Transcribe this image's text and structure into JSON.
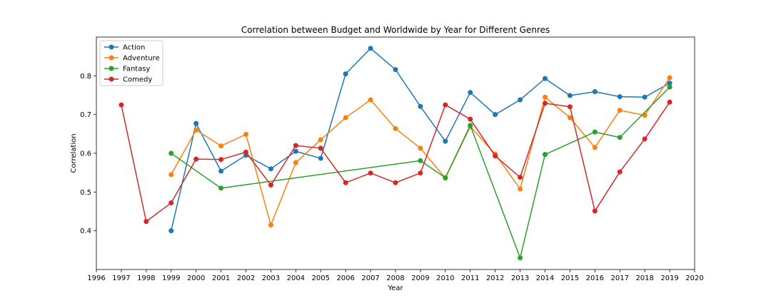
{
  "chart_data": {
    "type": "line",
    "title": "Correlation between Budget and Worldwide by Year for Different Genres",
    "xlabel": "Year",
    "ylabel": "Correlation",
    "xlim": [
      1996,
      2020
    ],
    "ylim": [
      0.3,
      0.9
    ],
    "xticks": [
      1996,
      1997,
      1998,
      1999,
      2000,
      2001,
      2002,
      2003,
      2004,
      2005,
      2006,
      2007,
      2008,
      2009,
      2010,
      2011,
      2012,
      2013,
      2014,
      2015,
      2016,
      2017,
      2018,
      2019,
      2020
    ],
    "yticks": [
      0.4,
      0.5,
      0.6,
      0.7,
      0.8
    ],
    "ytick_labels": [
      "0.4",
      "0.5",
      "0.6",
      "0.7",
      "0.8"
    ],
    "grid": false,
    "legend_position": "top-left",
    "series": [
      {
        "name": "Action",
        "color": "#1f77b4",
        "x": [
          1999,
          2000,
          2001,
          2002,
          2003,
          2004,
          2005,
          2006,
          2007,
          2008,
          2009,
          2010,
          2011,
          2012,
          2013,
          2014,
          2015,
          2016,
          2017,
          2018,
          2019
        ],
        "y": [
          0.4,
          0.677,
          0.554,
          0.595,
          0.56,
          0.605,
          0.587,
          0.805,
          0.871,
          0.816,
          0.721,
          0.631,
          0.757,
          0.7,
          0.738,
          0.793,
          0.749,
          0.759,
          0.746,
          0.745,
          0.781
        ]
      },
      {
        "name": "Adventure",
        "color": "#ff7f0e",
        "x": [
          1999,
          2000,
          2001,
          2002,
          2003,
          2004,
          2005,
          2006,
          2007,
          2008,
          2009,
          2010,
          2011,
          2012,
          2013,
          2014,
          2015,
          2016,
          2017,
          2018,
          2019
        ],
        "y": [
          0.545,
          0.66,
          0.619,
          0.649,
          0.415,
          0.576,
          0.635,
          0.692,
          0.738,
          0.664,
          0.613,
          0.536,
          0.669,
          0.598,
          0.508,
          0.745,
          0.692,
          0.615,
          0.711,
          0.698,
          0.795
        ]
      },
      {
        "name": "Fantasy",
        "color": "#2ca02c",
        "x": [
          1999,
          2001,
          2009,
          2010,
          2011,
          2013,
          2014,
          2016,
          2017,
          2019
        ],
        "y": [
          0.6,
          0.51,
          0.581,
          0.537,
          0.672,
          0.33,
          0.597,
          0.655,
          0.641,
          0.771
        ]
      },
      {
        "name": "Comedy",
        "color": "#d62728",
        "x": [
          1997,
          1998,
          1999,
          2000,
          2001,
          2002,
          2003,
          2004,
          2005,
          2006,
          2007,
          2008,
          2009,
          2010,
          2011,
          2012,
          2013,
          2014,
          2015,
          2016,
          2017,
          2018,
          2019
        ],
        "y": [
          0.725,
          0.424,
          0.472,
          0.585,
          0.584,
          0.603,
          0.518,
          0.62,
          0.613,
          0.524,
          0.549,
          0.524,
          0.549,
          0.725,
          0.688,
          0.593,
          0.538,
          0.729,
          0.72,
          0.451,
          0.552,
          0.637,
          0.732
        ]
      }
    ]
  }
}
